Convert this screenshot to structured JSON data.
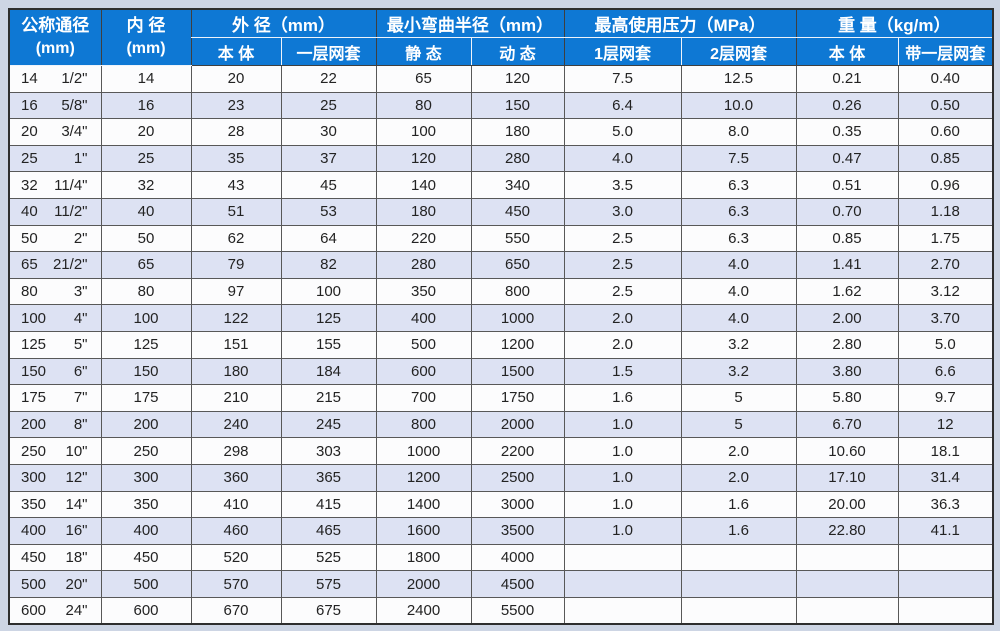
{
  "page": {
    "background_color": "#cdd5e4"
  },
  "table": {
    "colors": {
      "header_bg": "#0e78d4",
      "header_text": "#ffffff",
      "row_alt_bg": "#dde2f3",
      "row_bg": "#fcfcfd",
      "grid_line": "#585858"
    },
    "header": {
      "nominal": {
        "line1": "公称通径",
        "line2": "(mm)"
      },
      "inner": {
        "line1": "内 径",
        "line2": "(mm)"
      },
      "outer": {
        "label": "外  径（mm）",
        "sub": [
          "本 体",
          "一层网套"
        ]
      },
      "bend": {
        "label": "最小弯曲半径（mm）",
        "sub": [
          "静  态",
          "动  态"
        ]
      },
      "pressure": {
        "label": "最高使用压力（MPa）",
        "sub": [
          "1层网套",
          "2层网套"
        ]
      },
      "weight": {
        "label": "重  量（kg/m）",
        "sub": [
          "本  体",
          "带一层网套"
        ]
      }
    },
    "row_keys": [
      "id",
      "od_body",
      "od_mesh",
      "bend_static",
      "bend_dynamic",
      "p1",
      "p2",
      "w_body",
      "w_mesh"
    ],
    "rows": [
      {
        "dn": "14",
        "inch": "1/2\"",
        "id": "14",
        "od_body": "20",
        "od_mesh": "22",
        "bend_static": "65",
        "bend_dynamic": "120",
        "p1": "7.5",
        "p2": "12.5",
        "w_body": "0.21",
        "w_mesh": "0.40"
      },
      {
        "dn": "16",
        "inch": "5/8\"",
        "id": "16",
        "od_body": "23",
        "od_mesh": "25",
        "bend_static": "80",
        "bend_dynamic": "150",
        "p1": "6.4",
        "p2": "10.0",
        "w_body": "0.26",
        "w_mesh": "0.50"
      },
      {
        "dn": "20",
        "inch": "3/4\"",
        "id": "20",
        "od_body": "28",
        "od_mesh": "30",
        "bend_static": "100",
        "bend_dynamic": "180",
        "p1": "5.0",
        "p2": "8.0",
        "w_body": "0.35",
        "w_mesh": "0.60"
      },
      {
        "dn": "25",
        "inch": "1\"",
        "id": "25",
        "od_body": "35",
        "od_mesh": "37",
        "bend_static": "120",
        "bend_dynamic": "280",
        "p1": "4.0",
        "p2": "7.5",
        "w_body": "0.47",
        "w_mesh": "0.85"
      },
      {
        "dn": "32",
        "inch": "11/4\"",
        "id": "32",
        "od_body": "43",
        "od_mesh": "45",
        "bend_static": "140",
        "bend_dynamic": "340",
        "p1": "3.5",
        "p2": "6.3",
        "w_body": "0.51",
        "w_mesh": "0.96"
      },
      {
        "dn": "40",
        "inch": "11/2\"",
        "id": "40",
        "od_body": "51",
        "od_mesh": "53",
        "bend_static": "180",
        "bend_dynamic": "450",
        "p1": "3.0",
        "p2": "6.3",
        "w_body": "0.70",
        "w_mesh": "1.18"
      },
      {
        "dn": "50",
        "inch": "2\"",
        "id": "50",
        "od_body": "62",
        "od_mesh": "64",
        "bend_static": "220",
        "bend_dynamic": "550",
        "p1": "2.5",
        "p2": "6.3",
        "w_body": "0.85",
        "w_mesh": "1.75"
      },
      {
        "dn": "65",
        "inch": "21/2\"",
        "id": "65",
        "od_body": "79",
        "od_mesh": "82",
        "bend_static": "280",
        "bend_dynamic": "650",
        "p1": "2.5",
        "p2": "4.0",
        "w_body": "1.41",
        "w_mesh": "2.70"
      },
      {
        "dn": "80",
        "inch": "3\"",
        "id": "80",
        "od_body": "97",
        "od_mesh": "100",
        "bend_static": "350",
        "bend_dynamic": "800",
        "p1": "2.5",
        "p2": "4.0",
        "w_body": "1.62",
        "w_mesh": "3.12"
      },
      {
        "dn": "100",
        "inch": "4\"",
        "id": "100",
        "od_body": "122",
        "od_mesh": "125",
        "bend_static": "400",
        "bend_dynamic": "1000",
        "p1": "2.0",
        "p2": "4.0",
        "w_body": "2.00",
        "w_mesh": "3.70"
      },
      {
        "dn": "125",
        "inch": "5\"",
        "id": "125",
        "od_body": "151",
        "od_mesh": "155",
        "bend_static": "500",
        "bend_dynamic": "1200",
        "p1": "2.0",
        "p2": "3.2",
        "w_body": "2.80",
        "w_mesh": "5.0"
      },
      {
        "dn": "150",
        "inch": "6\"",
        "id": "150",
        "od_body": "180",
        "od_mesh": "184",
        "bend_static": "600",
        "bend_dynamic": "1500",
        "p1": "1.5",
        "p2": "3.2",
        "w_body": "3.80",
        "w_mesh": "6.6"
      },
      {
        "dn": "175",
        "inch": "7\"",
        "id": "175",
        "od_body": "210",
        "od_mesh": "215",
        "bend_static": "700",
        "bend_dynamic": "1750",
        "p1": "1.6",
        "p2": "5",
        "w_body": "5.80",
        "w_mesh": "9.7"
      },
      {
        "dn": "200",
        "inch": "8\"",
        "id": "200",
        "od_body": "240",
        "od_mesh": "245",
        "bend_static": "800",
        "bend_dynamic": "2000",
        "p1": "1.0",
        "p2": "5",
        "w_body": "6.70",
        "w_mesh": "12"
      },
      {
        "dn": "250",
        "inch": "10\"",
        "id": "250",
        "od_body": "298",
        "od_mesh": "303",
        "bend_static": "1000",
        "bend_dynamic": "2200",
        "p1": "1.0",
        "p2": "2.0",
        "w_body": "10.60",
        "w_mesh": "18.1"
      },
      {
        "dn": "300",
        "inch": "12\"",
        "id": "300",
        "od_body": "360",
        "od_mesh": "365",
        "bend_static": "1200",
        "bend_dynamic": "2500",
        "p1": "1.0",
        "p2": "2.0",
        "w_body": "17.10",
        "w_mesh": "31.4"
      },
      {
        "dn": "350",
        "inch": "14\"",
        "id": "350",
        "od_body": "410",
        "od_mesh": "415",
        "bend_static": "1400",
        "bend_dynamic": "3000",
        "p1": "1.0",
        "p2": "1.6",
        "w_body": "20.00",
        "w_mesh": "36.3"
      },
      {
        "dn": "400",
        "inch": "16\"",
        "id": "400",
        "od_body": "460",
        "od_mesh": "465",
        "bend_static": "1600",
        "bend_dynamic": "3500",
        "p1": "1.0",
        "p2": "1.6",
        "w_body": "22.80",
        "w_mesh": "41.1"
      },
      {
        "dn": "450",
        "inch": "18\"",
        "id": "450",
        "od_body": "520",
        "od_mesh": "525",
        "bend_static": "1800",
        "bend_dynamic": "4000",
        "p1": "",
        "p2": "",
        "w_body": "",
        "w_mesh": ""
      },
      {
        "dn": "500",
        "inch": "20\"",
        "id": "500",
        "od_body": "570",
        "od_mesh": "575",
        "bend_static": "2000",
        "bend_dynamic": "4500",
        "p1": "",
        "p2": "",
        "w_body": "",
        "w_mesh": ""
      },
      {
        "dn": "600",
        "inch": "24\"",
        "id": "600",
        "od_body": "670",
        "od_mesh": "675",
        "bend_static": "2400",
        "bend_dynamic": "5500",
        "p1": "",
        "p2": "",
        "w_body": "",
        "w_mesh": ""
      }
    ]
  }
}
